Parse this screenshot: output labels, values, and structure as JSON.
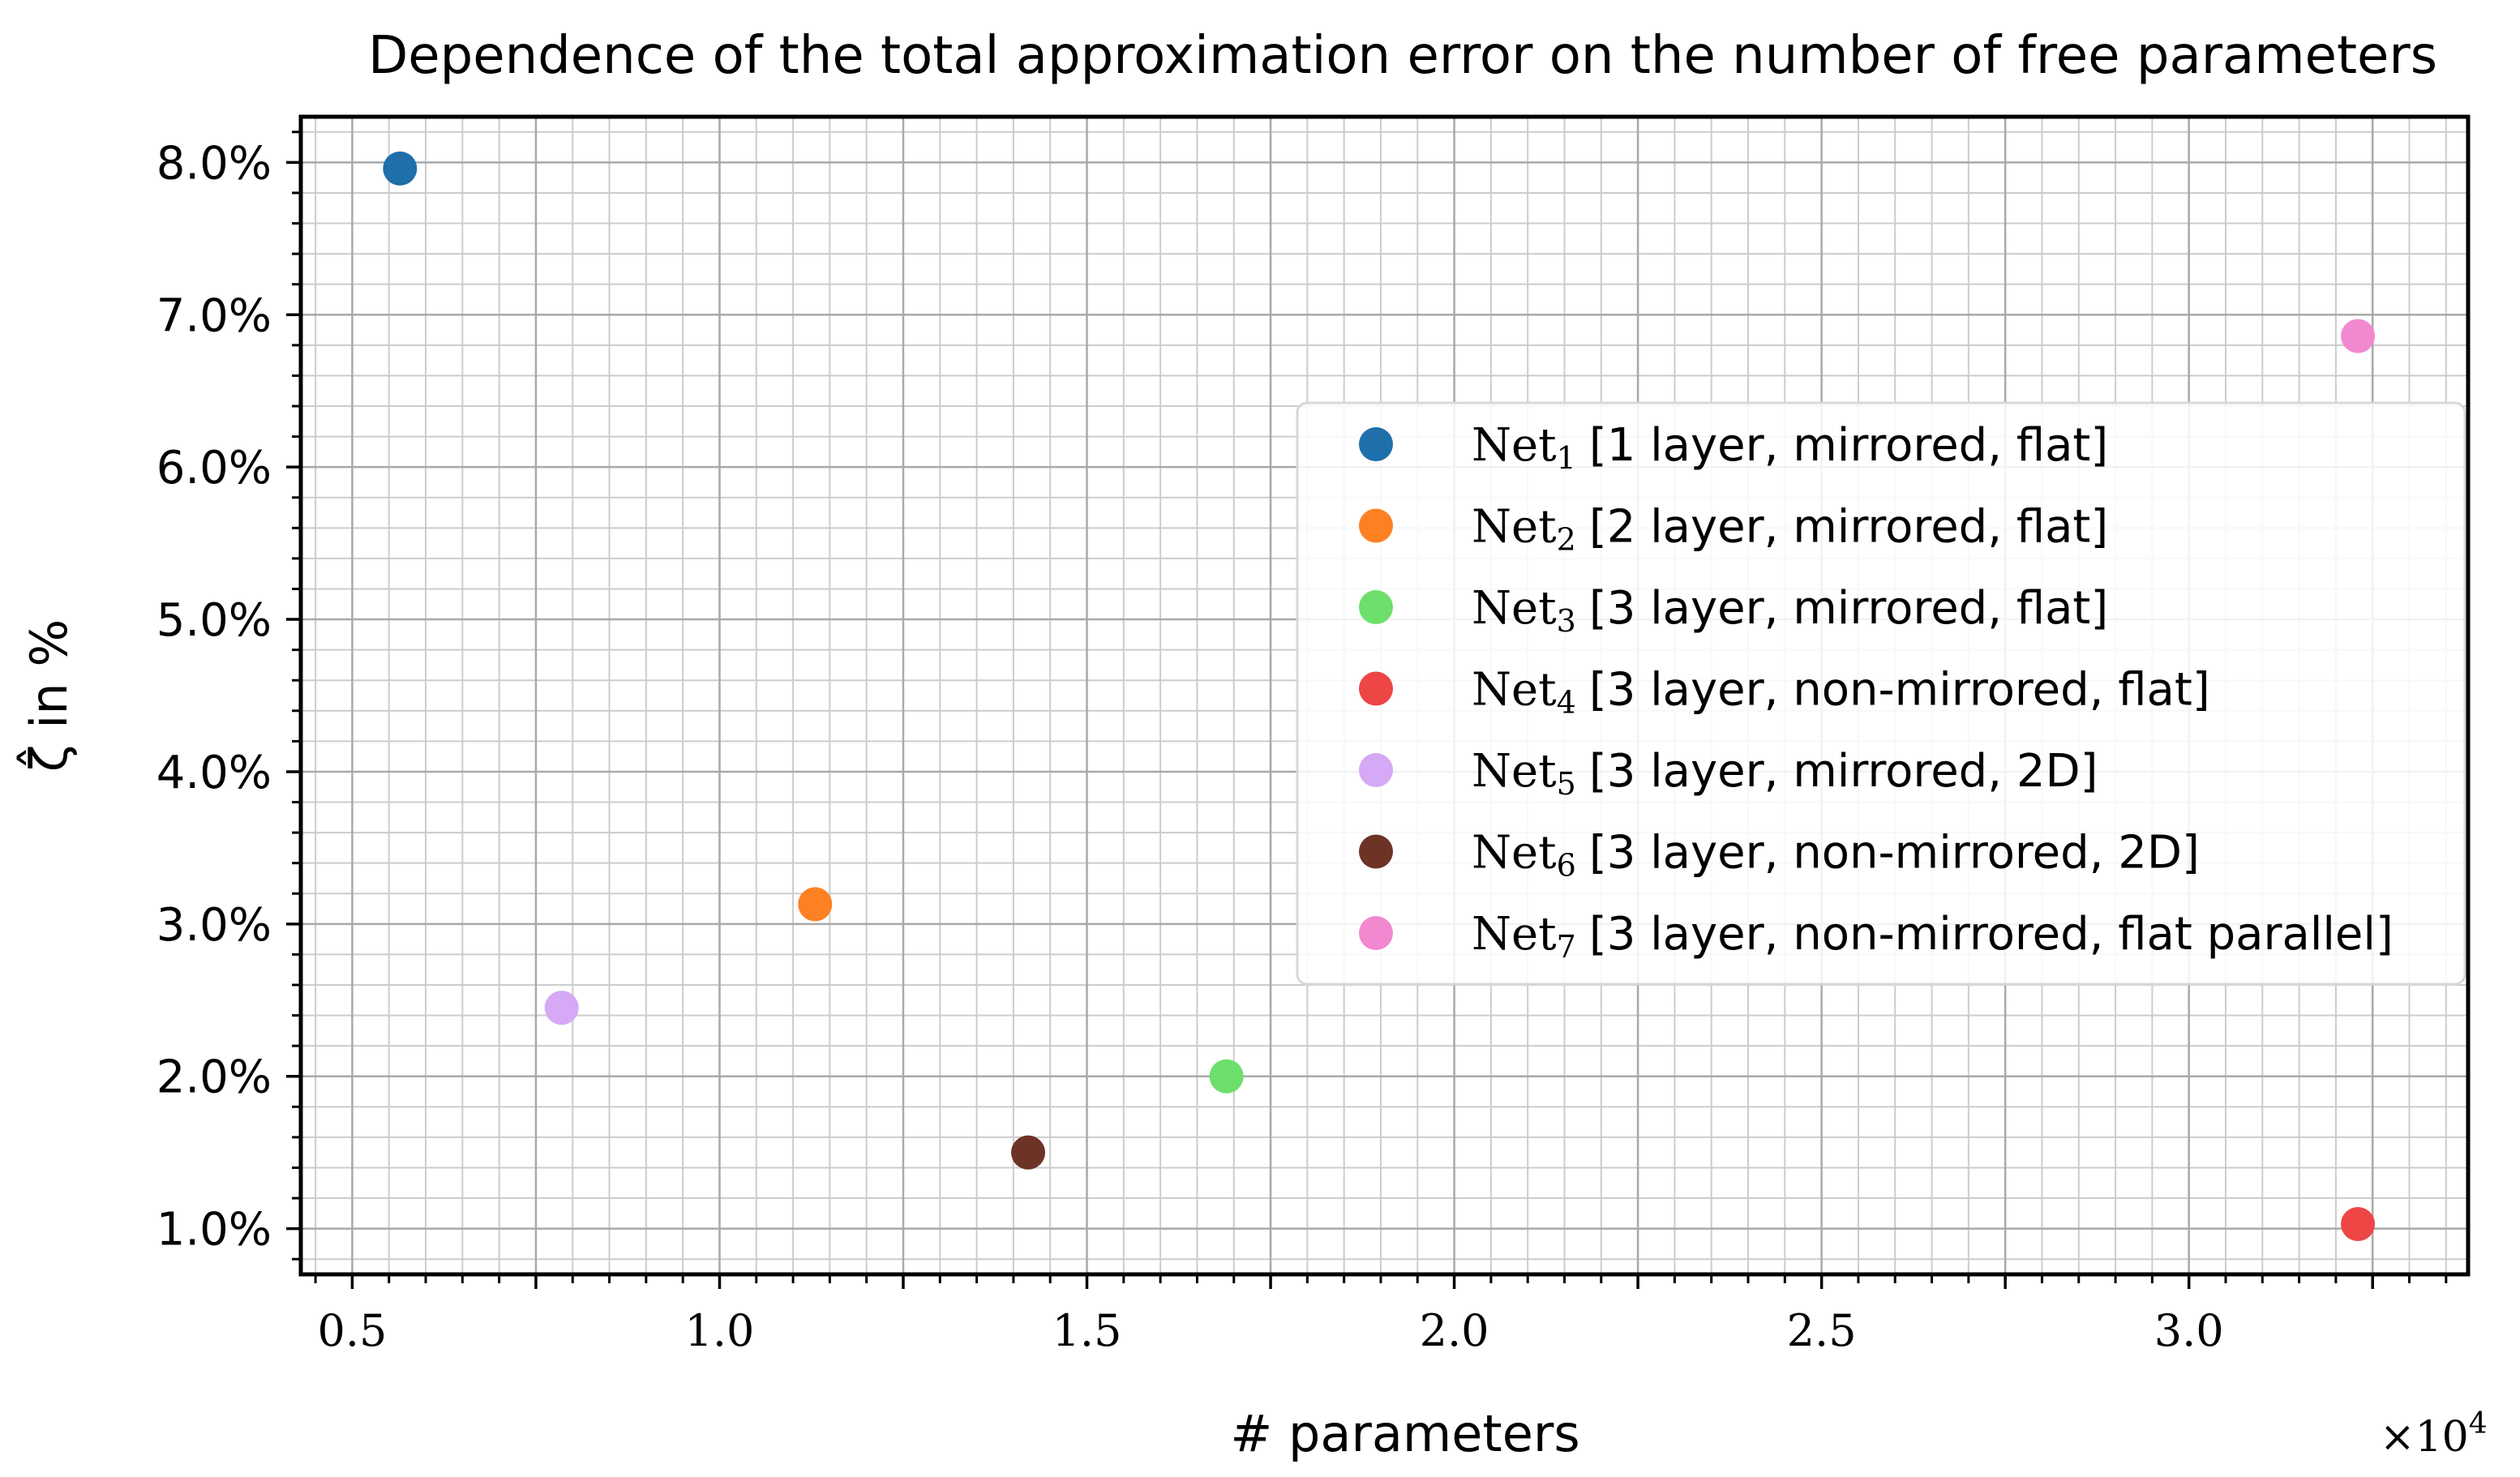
{
  "chart_data": {
    "type": "scatter",
    "title": "Dependence of the total approximation error on the number of free parameters",
    "xlabel": "# parameters",
    "ylabel": "ζ̂ in %",
    "x_offset_label": "×10",
    "x_offset_exponent": "4",
    "xlim": [
      4300,
      33800
    ],
    "ylim": [
      0.7,
      8.3
    ],
    "x_ticks": [
      5000,
      10000,
      15000,
      20000,
      25000,
      30000
    ],
    "x_tick_labels": [
      "0.5",
      "1.0",
      "1.5",
      "2.0",
      "2.5",
      "3.0"
    ],
    "y_ticks": [
      1,
      2,
      3,
      4,
      5,
      6,
      7,
      8
    ],
    "y_tick_labels": [
      "1.0%",
      "2.0%",
      "3.0%",
      "4.0%",
      "5.0%",
      "6.0%",
      "7.0%",
      "8.0%"
    ],
    "grid": true,
    "legend_placement": "center-right",
    "series": [
      {
        "name_base": "Net",
        "name_sub": "1",
        "name_rest": "[1 layer, mirrored, flat]",
        "color": "#1f6fab",
        "x": 5650,
        "y": 7.96
      },
      {
        "name_base": "Net",
        "name_sub": "2",
        "name_rest": "[2 layer, mirrored, flat]",
        "color": "#fd8023",
        "x": 11300,
        "y": 3.13
      },
      {
        "name_base": "Net",
        "name_sub": "3",
        "name_rest": "[3 layer, mirrored, flat]",
        "color": "#6ddf6a",
        "x": 16900,
        "y": 2.0
      },
      {
        "name_base": "Net",
        "name_sub": "4",
        "name_rest": "[3 layer, non-mirrored, flat]",
        "color": "#ee4545",
        "x": 32300,
        "y": 1.03
      },
      {
        "name_base": "Net",
        "name_sub": "5",
        "name_rest": "[3 layer, mirrored, 2D]",
        "color": "#d5a9f5",
        "x": 7850,
        "y": 2.45
      },
      {
        "name_base": "Net",
        "name_sub": "6",
        "name_rest": "[3 layer, non-mirrored, 2D]",
        "color": "#6e3327",
        "x": 14200,
        "y": 1.5
      },
      {
        "name_base": "Net",
        "name_sub": "7",
        "name_rest": "[3 layer, non-mirrored, flat parallel]",
        "color": "#f288d0",
        "x": 32300,
        "y": 6.86
      }
    ]
  }
}
